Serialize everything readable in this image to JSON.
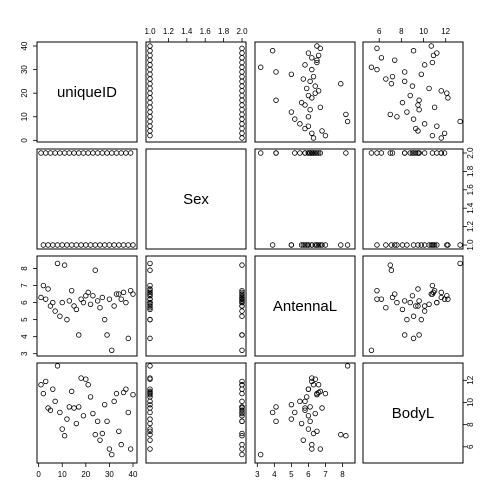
{
  "chart_data": {
    "type": "scatter",
    "subtype": "scatterplot-matrix",
    "title": "",
    "variables": [
      "uniqueID",
      "Sex",
      "AntennaL",
      "BodyL"
    ],
    "ranges": {
      "uniqueID": [
        1,
        40
      ],
      "Sex": [
        1,
        2
      ],
      "AntennaL": [
        3.1,
        8.5
      ],
      "BodyL": [
        4.9,
        13.2
      ]
    },
    "ticks": {
      "uniqueID": [
        0,
        10,
        20,
        30,
        40
      ],
      "Sex": [
        1.0,
        1.2,
        1.4,
        1.6,
        1.8,
        2.0
      ],
      "AntennaL": [
        3,
        4,
        5,
        6,
        7,
        8
      ],
      "BodyL": [
        6,
        8,
        10,
        12
      ]
    },
    "tick_labels": {
      "uniqueID": [
        "0",
        "10",
        "20",
        "30",
        "40"
      ],
      "Sex": [
        "1.0",
        "1.2",
        "1.4",
        "1.6",
        "1.8",
        "2.0"
      ],
      "AntennaL": [
        "3",
        "4",
        "5",
        "6",
        "7",
        "8"
      ],
      "BodyL": [
        "6",
        "8",
        "10",
        "12"
      ]
    },
    "observations": {
      "uniqueID": [
        1,
        2,
        3,
        4,
        5,
        6,
        7,
        8,
        9,
        10,
        11,
        12,
        13,
        14,
        15,
        16,
        17,
        18,
        19,
        20,
        21,
        22,
        23,
        24,
        25,
        26,
        27,
        28,
        29,
        30,
        31,
        32,
        33,
        34,
        35,
        36,
        37,
        38,
        39,
        40
      ],
      "Sex": [
        2,
        1,
        2,
        1,
        2,
        1,
        2,
        1,
        2,
        1,
        2,
        1,
        2,
        1,
        2,
        1,
        2,
        1,
        2,
        1,
        2,
        1,
        2,
        1,
        2,
        1,
        2,
        1,
        2,
        1,
        2,
        1,
        2,
        1,
        2,
        1,
        2,
        1,
        2,
        1
      ],
      "AntennaL": [
        6.3,
        7.0,
        6.2,
        6.8,
        5.8,
        6.0,
        5.5,
        8.3,
        5.2,
        6.0,
        8.2,
        5.0,
        6.1,
        6.7,
        5.8,
        5.6,
        4.1,
        6.2,
        6.0,
        6.4,
        6.6,
        5.9,
        6.4,
        7.9,
        6.1,
        5.7,
        6.3,
        5.0,
        4.1,
        6.2,
        3.2,
        5.8,
        6.5,
        6.5,
        6.2,
        6.6,
        6.0,
        3.9,
        6.7,
        6.5
      ],
      "BodyL": [
        11.6,
        10.8,
        11.9,
        9.5,
        9.3,
        11.2,
        10.1,
        13.3,
        9.1,
        7.6,
        7.0,
        8.5,
        9.6,
        11.0,
        9.5,
        8.1,
        9.6,
        12.2,
        8.8,
        12.1,
        11.6,
        10.5,
        9.0,
        7.1,
        8.3,
        6.6,
        7.2,
        9.8,
        8.3,
        5.8,
        5.3,
        10.1,
        10.8,
        7.4,
        6.2,
        10.9,
        11.2,
        9.1,
        5.8,
        10.7
      ]
    },
    "grid": false,
    "legend": "none"
  }
}
